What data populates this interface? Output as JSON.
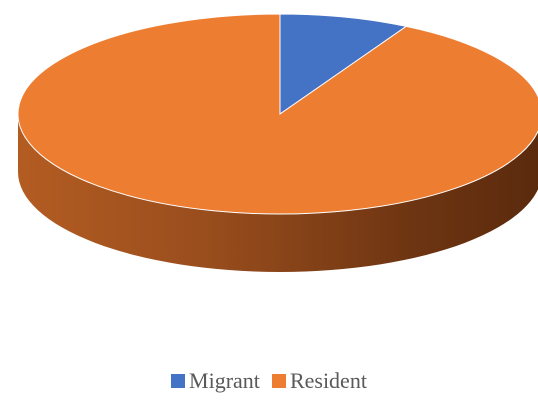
{
  "chart_data": {
    "type": "pie",
    "style": "3d",
    "title": "",
    "categories": [
      "Migrant",
      "Resident"
    ],
    "values": [
      8,
      92
    ],
    "colors": [
      "#4472C4",
      "#ED7D31"
    ],
    "legend_position": "bottom"
  },
  "legend": {
    "items": [
      {
        "label": "Migrant",
        "color": "#4472C4"
      },
      {
        "label": "Resident",
        "color": "#ED7D31"
      }
    ]
  }
}
